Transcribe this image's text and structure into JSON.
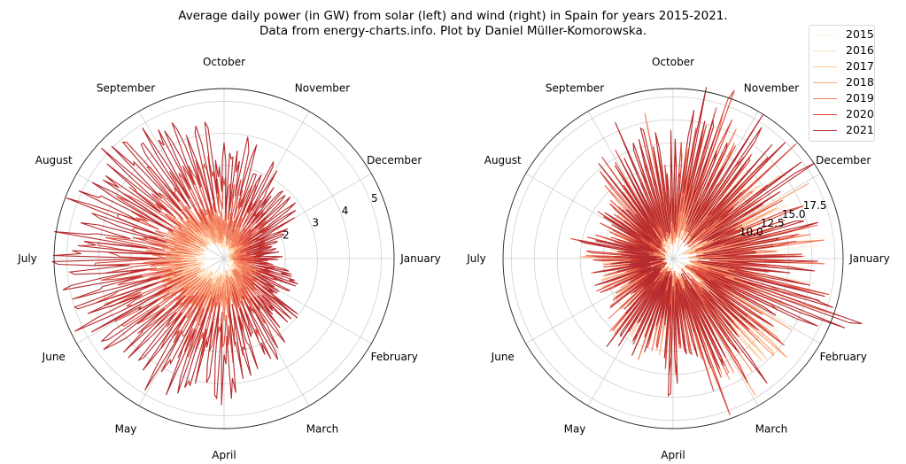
{
  "figure": {
    "title_line1": "Average daily power (in GW) from solar (left) and wind (right) in Spain for years 2015-2021.",
    "title_line2": "Data from energy-charts.info. Plot by Daniel Müller-Komorowska."
  },
  "legend": {
    "entries": [
      {
        "label": "2015",
        "color": "#fff2e0"
      },
      {
        "label": "2016",
        "color": "#fee3c4"
      },
      {
        "label": "2017",
        "color": "#fdcb9d"
      },
      {
        "label": "2018",
        "color": "#fca376"
      },
      {
        "label": "2019",
        "color": "#f07a5c"
      },
      {
        "label": "2020",
        "color": "#d9483b"
      },
      {
        "label": "2021",
        "color": "#b52a2e"
      }
    ]
  },
  "chart_data": [
    {
      "type": "line",
      "projection": "polar",
      "name": "solar",
      "title": "Solar (left)",
      "unit": "GW",
      "theta_labels": [
        "January",
        "February",
        "March",
        "April",
        "May",
        "June",
        "July",
        "August",
        "September",
        "October",
        "November",
        "December"
      ],
      "theta_direction": "clockwise",
      "theta_zero": "east",
      "rlim": [
        0.08,
        5.4
      ],
      "r_ticks": [
        1,
        2,
        3,
        4,
        5
      ],
      "r_tick_labels_visible": [
        "2",
        "3",
        "4",
        "5"
      ],
      "grid": true,
      "legend": "top-right",
      "samples_per_year": 36,
      "series": [
        {
          "name": "2015",
          "values": [
            0.4,
            0.6,
            0.3,
            0.7,
            0.8,
            0.6,
            0.9,
            1.0,
            0.8,
            1.2,
            1.1,
            1.0,
            1.3,
            1.2,
            1.4,
            1.3,
            1.5,
            1.4,
            1.6,
            1.5,
            1.6,
            1.5,
            1.4,
            1.3,
            1.2,
            1.1,
            1.0,
            0.8,
            0.9,
            0.7,
            0.6,
            0.7,
            0.5,
            0.4,
            0.5,
            0.3
          ]
        },
        {
          "name": "2016",
          "values": [
            0.5,
            0.4,
            0.7,
            0.8,
            0.6,
            1.0,
            0.9,
            1.1,
            1.2,
            1.0,
            1.3,
            1.2,
            1.4,
            1.3,
            1.5,
            1.6,
            1.5,
            1.6,
            1.7,
            1.5,
            1.6,
            1.4,
            1.3,
            1.4,
            1.2,
            1.1,
            0.9,
            1.0,
            0.8,
            0.7,
            0.6,
            0.8,
            0.5,
            0.6,
            0.4,
            0.5
          ]
        },
        {
          "name": "2017",
          "values": [
            0.6,
            0.5,
            0.8,
            0.9,
            1.0,
            1.1,
            1.0,
            1.3,
            1.2,
            1.4,
            1.3,
            1.5,
            1.6,
            1.4,
            1.7,
            1.6,
            1.8,
            1.7,
            1.8,
            1.6,
            1.7,
            1.5,
            1.6,
            1.4,
            1.3,
            1.2,
            1.1,
            1.2,
            0.9,
            1.0,
            0.8,
            0.7,
            0.8,
            0.6,
            0.5,
            0.6
          ]
        },
        {
          "name": "2018",
          "values": [
            0.6,
            0.7,
            0.9,
            0.8,
            1.1,
            1.0,
            1.2,
            1.3,
            1.1,
            1.4,
            1.5,
            1.3,
            1.6,
            1.7,
            1.6,
            1.8,
            1.7,
            1.9,
            1.8,
            1.7,
            1.8,
            1.6,
            1.7,
            1.5,
            1.4,
            1.5,
            1.2,
            1.3,
            1.0,
            1.1,
            0.9,
            0.8,
            0.9,
            0.7,
            0.6,
            0.7
          ]
        },
        {
          "name": "2019",
          "values": [
            0.8,
            0.9,
            1.1,
            1.0,
            1.3,
            1.2,
            1.5,
            1.4,
            1.6,
            1.7,
            1.5,
            1.9,
            1.8,
            2.0,
            1.9,
            2.1,
            2.2,
            2.0,
            2.2,
            2.1,
            2.0,
            1.9,
            2.0,
            1.8,
            1.7,
            1.6,
            1.5,
            1.4,
            1.3,
            1.2,
            1.1,
            1.0,
            1.2,
            0.9,
            1.0,
            0.8
          ]
        },
        {
          "name": "2020",
          "values": [
            1.2,
            1.4,
            1.7,
            1.5,
            2.0,
            1.8,
            2.4,
            2.2,
            2.6,
            2.9,
            2.5,
            3.0,
            3.1,
            2.8,
            3.3,
            3.2,
            3.5,
            3.4,
            3.6,
            3.3,
            3.5,
            3.2,
            3.0,
            3.1,
            2.8,
            2.6,
            2.7,
            2.3,
            2.1,
            2.2,
            1.9,
            1.6,
            1.8,
            1.5,
            1.4,
            1.3
          ]
        },
        {
          "name": "2021",
          "values": [
            1.5,
            1.8,
            2.1,
            1.9,
            2.6,
            2.4,
            3.2,
            2.9,
            3.5,
            3.8,
            3.3,
            4.0,
            4.1,
            3.7,
            4.3,
            4.0,
            4.6,
            4.4,
            4.8,
            4.5,
            4.7,
            4.4,
            4.5,
            4.1,
            3.9,
            4.0,
            3.6,
            3.3,
            3.5,
            3.0,
            2.8,
            2.4,
            2.6,
            2.2,
            1.9,
            1.7
          ]
        }
      ]
    },
    {
      "type": "line",
      "projection": "polar",
      "name": "wind",
      "title": "Wind (right)",
      "unit": "GW",
      "theta_labels": [
        "January",
        "February",
        "March",
        "April",
        "May",
        "June",
        "July",
        "August",
        "September",
        "October",
        "November",
        "December"
      ],
      "theta_direction": "clockwise",
      "theta_zero": "east",
      "rlim": [
        2.4,
        20.9
      ],
      "r_ticks": [
        5.0,
        7.5,
        10.0,
        12.5,
        15.0,
        17.5,
        20.0
      ],
      "r_tick_labels_visible": [
        "10.0",
        "12.5",
        "15.0",
        "17.5"
      ],
      "grid": true,
      "legend": "top-right",
      "samples_per_year": 36,
      "series": [
        {
          "name": "2015",
          "values": [
            14,
            9,
            6,
            12,
            8,
            11,
            7,
            13,
            6,
            9,
            7,
            5,
            8,
            6,
            9,
            5,
            7,
            6,
            8,
            5,
            6,
            7,
            5,
            8,
            6,
            9,
            7,
            10,
            8,
            11,
            9,
            13,
            10,
            12,
            9,
            14
          ]
        },
        {
          "name": "2016",
          "values": [
            12,
            15,
            8,
            11,
            13,
            7,
            10,
            12,
            8,
            9,
            6,
            10,
            7,
            8,
            6,
            7,
            9,
            6,
            7,
            5,
            8,
            6,
            7,
            9,
            8,
            7,
            10,
            8,
            12,
            9,
            11,
            14,
            9,
            12,
            11,
            10
          ]
        },
        {
          "name": "2017",
          "values": [
            11,
            8,
            13,
            9,
            12,
            14,
            9,
            11,
            7,
            10,
            8,
            6,
            9,
            7,
            6,
            8,
            7,
            6,
            8,
            7,
            5,
            8,
            6,
            7,
            9,
            8,
            11,
            9,
            8,
            12,
            10,
            9,
            13,
            11,
            8,
            12
          ]
        },
        {
          "name": "2018",
          "values": [
            13,
            10,
            9,
            12,
            15,
            11,
            14,
            10,
            8,
            11,
            9,
            7,
            8,
            10,
            7,
            6,
            8,
            7,
            9,
            6,
            7,
            8,
            7,
            9,
            10,
            8,
            12,
            9,
            11,
            10,
            13,
            11,
            9,
            14,
            10,
            12
          ]
        },
        {
          "name": "2019",
          "values": [
            15,
            12,
            16,
            10,
            13,
            9,
            12,
            11,
            9,
            10,
            8,
            11,
            7,
            9,
            8,
            7,
            6,
            8,
            9,
            7,
            8,
            6,
            9,
            10,
            8,
            11,
            13,
            10,
            12,
            15,
            11,
            14,
            12,
            10,
            13,
            15
          ]
        },
        {
          "name": "2020",
          "values": [
            12,
            17,
            13,
            11,
            14,
            10,
            13,
            16,
            9,
            12,
            10,
            8,
            11,
            9,
            7,
            8,
            9,
            7,
            8,
            10,
            7,
            9,
            8,
            11,
            12,
            9,
            14,
            11,
            13,
            16,
            12,
            15,
            14,
            11,
            16,
            13
          ]
        },
        {
          "name": "2021",
          "values": [
            16,
            13,
            18,
            12,
            11,
            15,
            10,
            14,
            9,
            13,
            8,
            10,
            9,
            11,
            8,
            7,
            9,
            8,
            7,
            9,
            8,
            10,
            9,
            12,
            10,
            14,
            11,
            13,
            16,
            12,
            15,
            13,
            17,
            14,
            12,
            16
          ]
        }
      ]
    }
  ]
}
